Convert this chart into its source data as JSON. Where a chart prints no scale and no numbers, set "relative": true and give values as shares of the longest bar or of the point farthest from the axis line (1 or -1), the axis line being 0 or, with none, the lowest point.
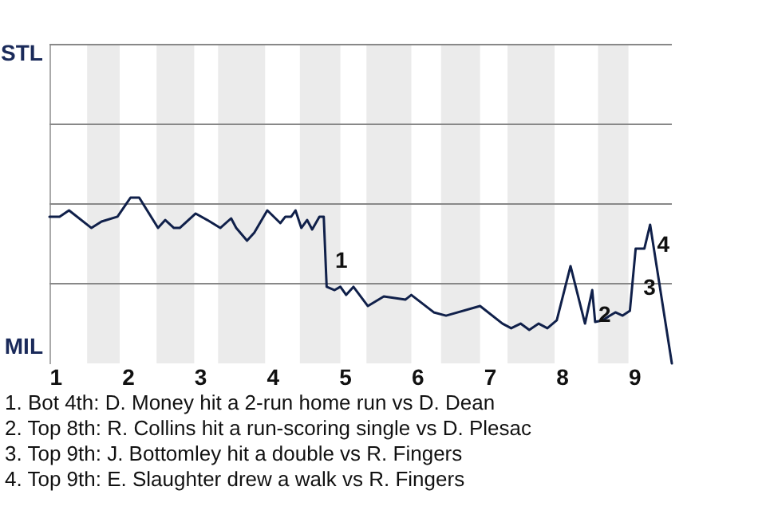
{
  "chart_data": {
    "type": "line",
    "relative": true,
    "xlim": [
      0.92,
      9.52
    ],
    "xticks": [
      1,
      2,
      3,
      4,
      5,
      6,
      7,
      8,
      9
    ],
    "ref_lines": [
      {
        "axis": "y",
        "value": 0.481,
        "color": "#888888"
      },
      {
        "axis": "y",
        "value": 0.962,
        "color": "#888888"
      },
      {
        "axis": "y",
        "value": 1.442,
        "color": "#888888"
      },
      {
        "axis": "y",
        "value": 1.923,
        "color": "#888888"
      }
    ],
    "bands": [
      {
        "axis": "x",
        "from": 1.44,
        "to": 1.89,
        "color": "#ebebeb"
      },
      {
        "axis": "x",
        "from": 2.4,
        "to": 2.92,
        "color": "#ebebeb"
      },
      {
        "axis": "x",
        "from": 3.25,
        "to": 3.9,
        "color": "#ebebeb"
      },
      {
        "axis": "x",
        "from": 4.38,
        "to": 4.94,
        "color": "#ebebeb"
      },
      {
        "axis": "x",
        "from": 5.3,
        "to": 5.92,
        "color": "#ebebeb"
      },
      {
        "axis": "x",
        "from": 6.33,
        "to": 6.87,
        "color": "#ebebeb"
      },
      {
        "axis": "x",
        "from": 7.25,
        "to": 7.9,
        "color": "#ebebeb"
      },
      {
        "axis": "x",
        "from": 8.5,
        "to": 8.92,
        "color": "#ebebeb"
      }
    ],
    "series": [
      {
        "color": "#10204a",
        "x": [
          0.92,
          1.06,
          1.19,
          1.5,
          1.64,
          1.86,
          2.04,
          2.16,
          2.42,
          2.52,
          2.64,
          2.72,
          2.94,
          3.1,
          3.28,
          3.43,
          3.5,
          3.65,
          3.75,
          3.93,
          4.11,
          4.18,
          4.26,
          4.32,
          4.4,
          4.48,
          4.55,
          4.65,
          4.71,
          4.75,
          4.86,
          4.94,
          5.02,
          5.12,
          5.32,
          5.54,
          5.84,
          5.92,
          6.23,
          6.4,
          6.87,
          7.18,
          7.3,
          7.43,
          7.55,
          7.68,
          7.8,
          7.93,
          8.12,
          8.32,
          8.42,
          8.46,
          8.56,
          8.74,
          8.84,
          8.94,
          9.02,
          9.14,
          9.22,
          9.52
        ],
        "values": [
          0.885,
          0.885,
          0.923,
          0.817,
          0.856,
          0.885,
          1,
          1,
          0.817,
          0.865,
          0.817,
          0.817,
          0.904,
          0.865,
          0.817,
          0.875,
          0.817,
          0.74,
          0.788,
          0.923,
          0.846,
          0.885,
          0.885,
          0.923,
          0.817,
          0.865,
          0.808,
          0.885,
          0.885,
          0.462,
          0.442,
          0.462,
          0.413,
          0.462,
          0.346,
          0.404,
          0.385,
          0.413,
          0.308,
          0.288,
          0.346,
          0.24,
          0.212,
          0.24,
          0.202,
          0.24,
          0.212,
          0.26,
          0.587,
          0.24,
          0.442,
          0.25,
          0.26,
          0.308,
          0.288,
          0.317,
          0.692,
          0.692,
          0.837,
          0
        ]
      }
    ],
    "annotations": [
      "STL",
      "MIL",
      {
        "text": "1",
        "x": 4.82,
        "y": 0.615
      },
      {
        "text": "2",
        "x": 8.46,
        "y": 0.288
      },
      {
        "text": "3",
        "x": 9.08,
        "y": 0.452
      },
      {
        "text": "4",
        "x": 9.27,
        "y": 0.712
      },
      "1. Bot 4th: D. Money hit a 2-run home run vs D. Dean",
      "2. Top 8th: R. Collins hit a run-scoring single vs D. Plesac",
      "3. Top 9th: J. Bottomley hit a double vs R. Fingers",
      "4. Top 9th: E. Slaughter drew a walk vs R. Fingers"
    ]
  }
}
